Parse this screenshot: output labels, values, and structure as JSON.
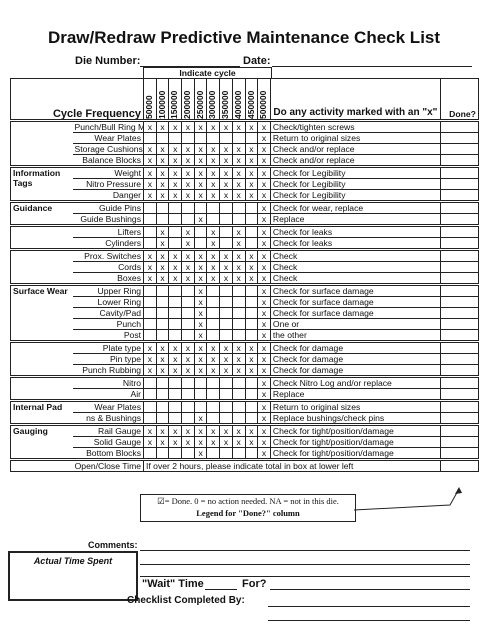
{
  "title": "Draw/Redraw Predictive Maintenance Check List",
  "die_number_label": "Die Number:",
  "date_label": "Date:",
  "indicate_cycle": "Indicate cycle",
  "header": {
    "cycle_frequency": "Cycle Frequency",
    "cycles": [
      "50000",
      "100000",
      "150000",
      "200000",
      "250000",
      "300000",
      "350000",
      "400000",
      "450000",
      "500000"
    ],
    "question": "Do any activity marked with an \"x\"",
    "done": "Done?"
  },
  "sections": [
    {
      "rows": [
        {
          "item": "Punch/Bull Ring Mounting",
          "marks": [
            "x",
            "x",
            "x",
            "x",
            "x",
            "x",
            "x",
            "x",
            "x",
            "x"
          ],
          "action": "Check/tighten screws"
        },
        {
          "item": "Wear Plates",
          "marks": [
            null,
            null,
            null,
            null,
            null,
            null,
            null,
            null,
            null,
            "x"
          ],
          "action": "Return to original sizes"
        },
        {
          "item": "Storage Cushions",
          "marks": [
            "x",
            "x",
            "x",
            "x",
            "x",
            "x",
            "x",
            "x",
            "x",
            "x"
          ],
          "action": "Check and/or replace"
        },
        {
          "item": "Balance Blocks",
          "marks": [
            "x",
            "x",
            "x",
            "x",
            "x",
            "x",
            "x",
            "x",
            "x",
            "x"
          ],
          "action": "Check and/or replace"
        }
      ]
    },
    {
      "group": "Information Tags",
      "rows": [
        {
          "item": "Weight",
          "marks": [
            "x",
            "x",
            "x",
            "x",
            "x",
            "x",
            "x",
            "x",
            "x",
            "x"
          ],
          "action": "Check for Legibility"
        },
        {
          "item": "Nitro Pressure",
          "marks": [
            "x",
            "x",
            "x",
            "x",
            "x",
            "x",
            "x",
            "x",
            "x",
            "x"
          ],
          "action": "Check for Legibility"
        },
        {
          "item": "Danger",
          "marks": [
            "x",
            "x",
            "x",
            "x",
            "x",
            "x",
            "x",
            "x",
            "x",
            "x"
          ],
          "action": "Check for Legibility"
        }
      ]
    },
    {
      "group": "Guidance",
      "rows": [
        {
          "item": "Guide Pins",
          "marks": [
            null,
            null,
            null,
            null,
            null,
            null,
            null,
            null,
            null,
            "x"
          ],
          "action": "Check for wear, replace"
        },
        {
          "item": "Guide Bushings",
          "marks": [
            null,
            null,
            null,
            null,
            "x",
            null,
            null,
            null,
            null,
            "x"
          ],
          "action": "Replace"
        }
      ]
    },
    {
      "rows": [
        {
          "item": "Lifters",
          "marks": [
            null,
            "x",
            null,
            "x",
            null,
            "x",
            null,
            "x",
            null,
            "x"
          ],
          "action": "Check for leaks"
        },
        {
          "item": "Cylinders",
          "marks": [
            null,
            "x",
            null,
            "x",
            null,
            "x",
            null,
            "x",
            null,
            "x"
          ],
          "action": "Check for leaks"
        }
      ]
    },
    {
      "rows": [
        {
          "item": "Prox. Switches",
          "marks": [
            "x",
            "x",
            "x",
            "x",
            "x",
            "x",
            "x",
            "x",
            "x",
            "x"
          ],
          "action": "Check"
        },
        {
          "item": "Cords",
          "marks": [
            "x",
            "x",
            "x",
            "x",
            "x",
            "x",
            "x",
            "x",
            "x",
            "x"
          ],
          "action": "Check"
        },
        {
          "item": "Boxes",
          "marks": [
            "x",
            "x",
            "x",
            "x",
            "x",
            "x",
            "x",
            "x",
            "x",
            "x"
          ],
          "action": "Check"
        }
      ]
    },
    {
      "group": "Surface Wear",
      "rows": [
        {
          "item": "Upper Ring",
          "marks": [
            null,
            null,
            null,
            null,
            "x",
            null,
            null,
            null,
            null,
            "x"
          ],
          "action": "Check for surface damage"
        },
        {
          "item": "Lower Ring",
          "marks": [
            null,
            null,
            null,
            null,
            "x",
            null,
            null,
            null,
            null,
            "x"
          ],
          "action": "Check for surface damage"
        },
        {
          "item": "Cavity/Pad",
          "marks": [
            null,
            null,
            null,
            null,
            "x",
            null,
            null,
            null,
            null,
            "x"
          ],
          "action": "Check for surface damage"
        },
        {
          "item": "Punch",
          "marks": [
            null,
            null,
            null,
            null,
            "x",
            null,
            null,
            null,
            null,
            "x"
          ],
          "action": "One or"
        },
        {
          "item": "Post",
          "marks": [
            null,
            null,
            null,
            null,
            "x",
            null,
            null,
            null,
            null,
            "x"
          ],
          "action": "the other"
        }
      ]
    },
    {
      "rows": [
        {
          "item": "Plate type",
          "marks": [
            "x",
            "x",
            "x",
            "x",
            "x",
            "x",
            "x",
            "x",
            "x",
            "x"
          ],
          "action": "Check for damage"
        },
        {
          "item": "Pin type",
          "marks": [
            "x",
            "x",
            "x",
            "x",
            "x",
            "x",
            "x",
            "x",
            "x",
            "x"
          ],
          "action": "Check for damage"
        },
        {
          "item": "Punch Rubbing",
          "marks": [
            "x",
            "x",
            "x",
            "x",
            "x",
            "x",
            "x",
            "x",
            "x",
            "x"
          ],
          "action": "Check for damage"
        }
      ]
    },
    {
      "rows": [
        {
          "item": "Nitro",
          "marks": [
            null,
            null,
            null,
            null,
            null,
            null,
            null,
            null,
            null,
            "x"
          ],
          "action": "Check Nitro Log and/or replace"
        },
        {
          "item": "Air",
          "marks": [
            null,
            null,
            null,
            null,
            null,
            null,
            null,
            null,
            null,
            "x"
          ],
          "action": "Replace"
        }
      ]
    },
    {
      "group": "Internal Pad",
      "rows": [
        {
          "item": "Wear Plates",
          "marks": [
            null,
            null,
            null,
            null,
            null,
            null,
            null,
            null,
            null,
            "x"
          ],
          "action": "Return to original sizes"
        },
        {
          "item": "ns & Bushings",
          "marks": [
            null,
            null,
            null,
            null,
            "x",
            null,
            null,
            null,
            null,
            "x"
          ],
          "action": "Replace bushings/check pins"
        }
      ]
    },
    {
      "group": "Gauging",
      "rows": [
        {
          "item": "Rail Gauge",
          "marks": [
            "x",
            "x",
            "x",
            "x",
            "x",
            "x",
            "x",
            "x",
            "x",
            "x"
          ],
          "action": "Check for tight/position/damage"
        },
        {
          "item": "Solid Gauge",
          "marks": [
            "x",
            "x",
            "x",
            "x",
            "x",
            "x",
            "x",
            "x",
            "x",
            "x"
          ],
          "action": "Check for tight/position/damage"
        },
        {
          "item": "Bottom Blocks",
          "marks": [
            null,
            null,
            null,
            null,
            "x",
            null,
            null,
            null,
            null,
            "x"
          ],
          "action": "Check for tight/position/damage"
        }
      ]
    },
    {
      "rows": [
        {
          "item": "Open/Close Time",
          "note": "If over 2 hours, please indicate total in box at lower left"
        }
      ]
    }
  ],
  "legend": {
    "text": "☑= Done.  0 = no action needed.  NA = not in this die.",
    "title": "Legend for \"Done?\" column"
  },
  "footer": {
    "comments": "Comments:",
    "actual_time": "Actual Time Spent",
    "wait_time": "\"Wait\" Time",
    "for": "For?",
    "completed_by": "Checklist Completed By:"
  }
}
